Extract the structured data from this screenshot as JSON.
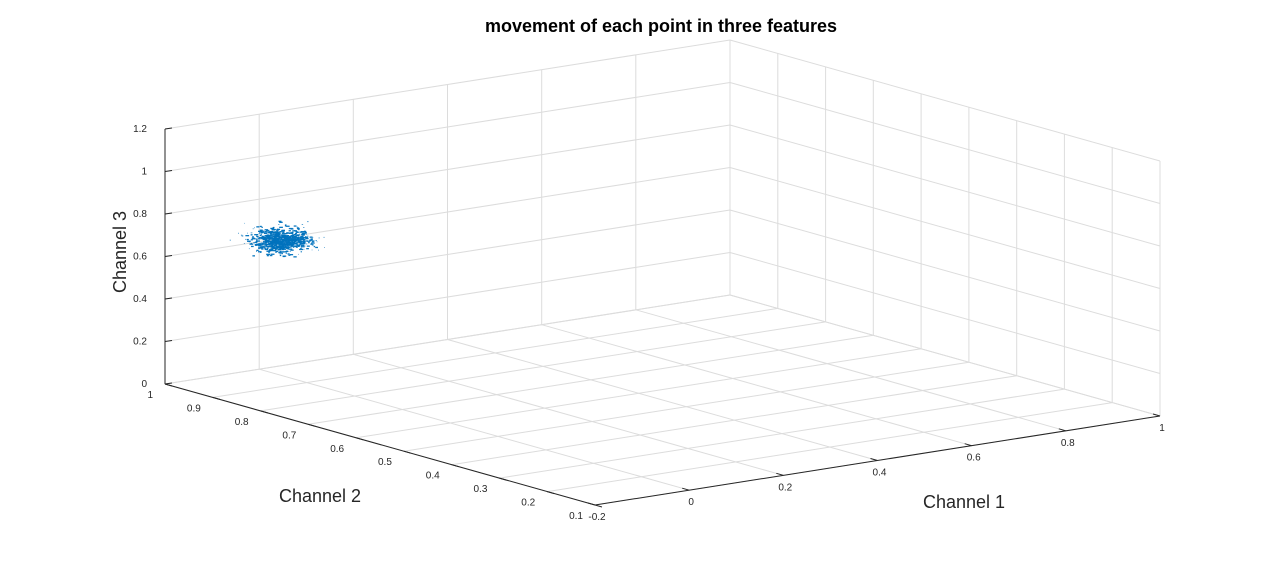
{
  "chart_data": {
    "type": "scatter",
    "title": "movement of each point in three features",
    "xlabel": "Channel 1",
    "ylabel": "Channel 2",
    "zlabel": "Channel 3",
    "xlim": [
      -0.2,
      1
    ],
    "ylim": [
      0.1,
      1
    ],
    "zlim": [
      0,
      1.2
    ],
    "xticks": [
      "-0.2",
      "0",
      "0.2",
      "0.4",
      "0.6",
      "0.8",
      "1"
    ],
    "yticks": [
      "0.1",
      "0.2",
      "0.3",
      "0.4",
      "0.5",
      "0.6",
      "0.7",
      "0.8",
      "0.9",
      "1"
    ],
    "zticks": [
      "0",
      "0.2",
      "0.4",
      "0.6",
      "0.8",
      "1",
      "1.2"
    ],
    "grid": true,
    "marker_color": "#0072BD",
    "cluster": {
      "x_center": -0.17,
      "x_spread": 0.05,
      "y_center": 0.79,
      "y_spread": 0.04,
      "z_center": 0.8,
      "z_spread": 0.05
    }
  }
}
